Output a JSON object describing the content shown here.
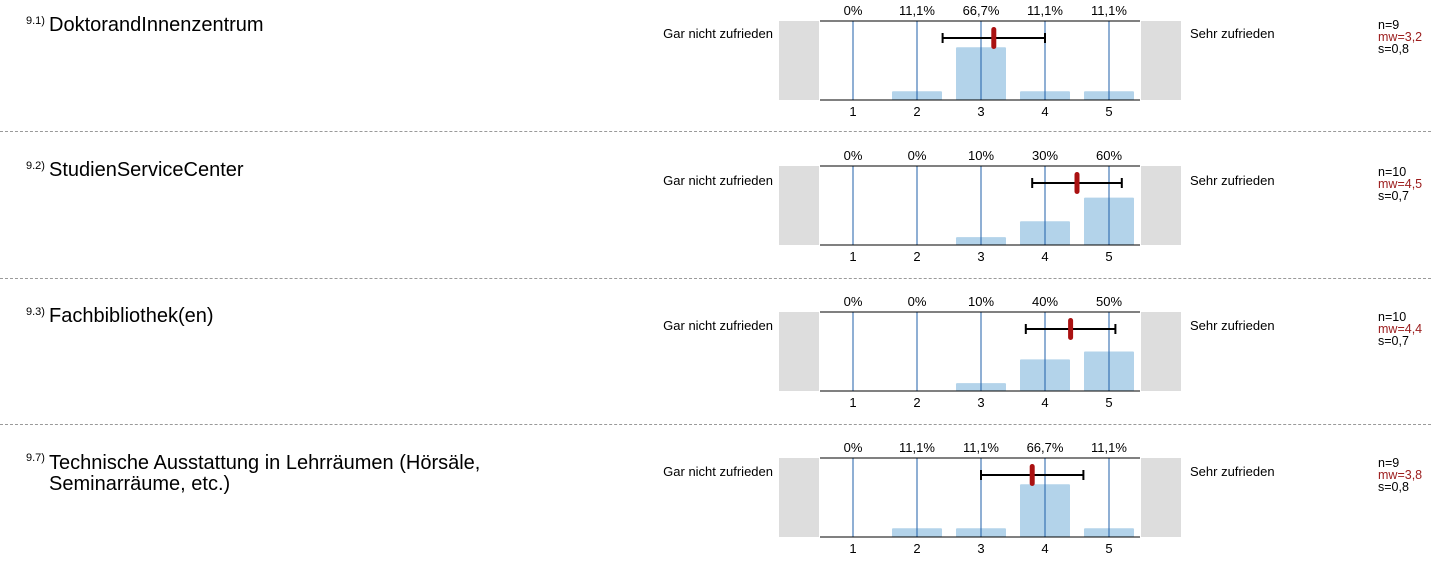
{
  "scale": {
    "left_label": "Gar nicht zufrieden",
    "right_label": "Sehr zufrieden",
    "tick_labels": [
      "1",
      "2",
      "3",
      "4",
      "5"
    ]
  },
  "colors": {
    "bar": "#b3d3ea",
    "gridline": "#1f5fa8",
    "mean": "#aa1111",
    "side_box": "#dddddd"
  },
  "items": [
    {
      "number": "9.1)",
      "title": "DoktorandInnenzentrum",
      "n": "n=9",
      "mw": "mw=3,2",
      "s": "s=0,8"
    },
    {
      "number": "9.2)",
      "title": "StudienServiceCenter",
      "n": "n=10",
      "mw": "mw=4,5",
      "s": "s=0,7"
    },
    {
      "number": "9.3)",
      "title": "Fachbibliothek(en)",
      "n": "n=10",
      "mw": "mw=4,4",
      "s": "s=0,7"
    },
    {
      "number": "9.7)",
      "title": "Technische Ausstattung in Lehrräumen (Hörsäle, Seminarräume, etc.)",
      "n": "n=9",
      "mw": "mw=3,8",
      "s": "s=0,8"
    }
  ],
  "chart_data": [
    {
      "type": "bar",
      "categories": [
        "1",
        "2",
        "3",
        "4",
        "5"
      ],
      "values": [
        0,
        11.1,
        66.7,
        11.1,
        11.1
      ],
      "value_labels": [
        "0%",
        "11,1%",
        "66,7%",
        "11,1%",
        "11,1%"
      ],
      "mean": 3.2,
      "sd": 0.8,
      "ylim": [
        0,
        100
      ]
    },
    {
      "type": "bar",
      "categories": [
        "1",
        "2",
        "3",
        "4",
        "5"
      ],
      "values": [
        0,
        0,
        10,
        30,
        60
      ],
      "value_labels": [
        "0%",
        "0%",
        "10%",
        "30%",
        "60%"
      ],
      "mean": 4.5,
      "sd": 0.7,
      "ylim": [
        0,
        100
      ]
    },
    {
      "type": "bar",
      "categories": [
        "1",
        "2",
        "3",
        "4",
        "5"
      ],
      "values": [
        0,
        0,
        10,
        40,
        50
      ],
      "value_labels": [
        "0%",
        "0%",
        "10%",
        "40%",
        "50%"
      ],
      "mean": 4.4,
      "sd": 0.7,
      "ylim": [
        0,
        100
      ]
    },
    {
      "type": "bar",
      "categories": [
        "1",
        "2",
        "3",
        "4",
        "5"
      ],
      "values": [
        0,
        11.1,
        11.1,
        66.7,
        11.1
      ],
      "value_labels": [
        "0%",
        "11,1%",
        "11,1%",
        "66,7%",
        "11,1%"
      ],
      "mean": 3.8,
      "sd": 0.8,
      "ylim": [
        0,
        100
      ]
    }
  ]
}
